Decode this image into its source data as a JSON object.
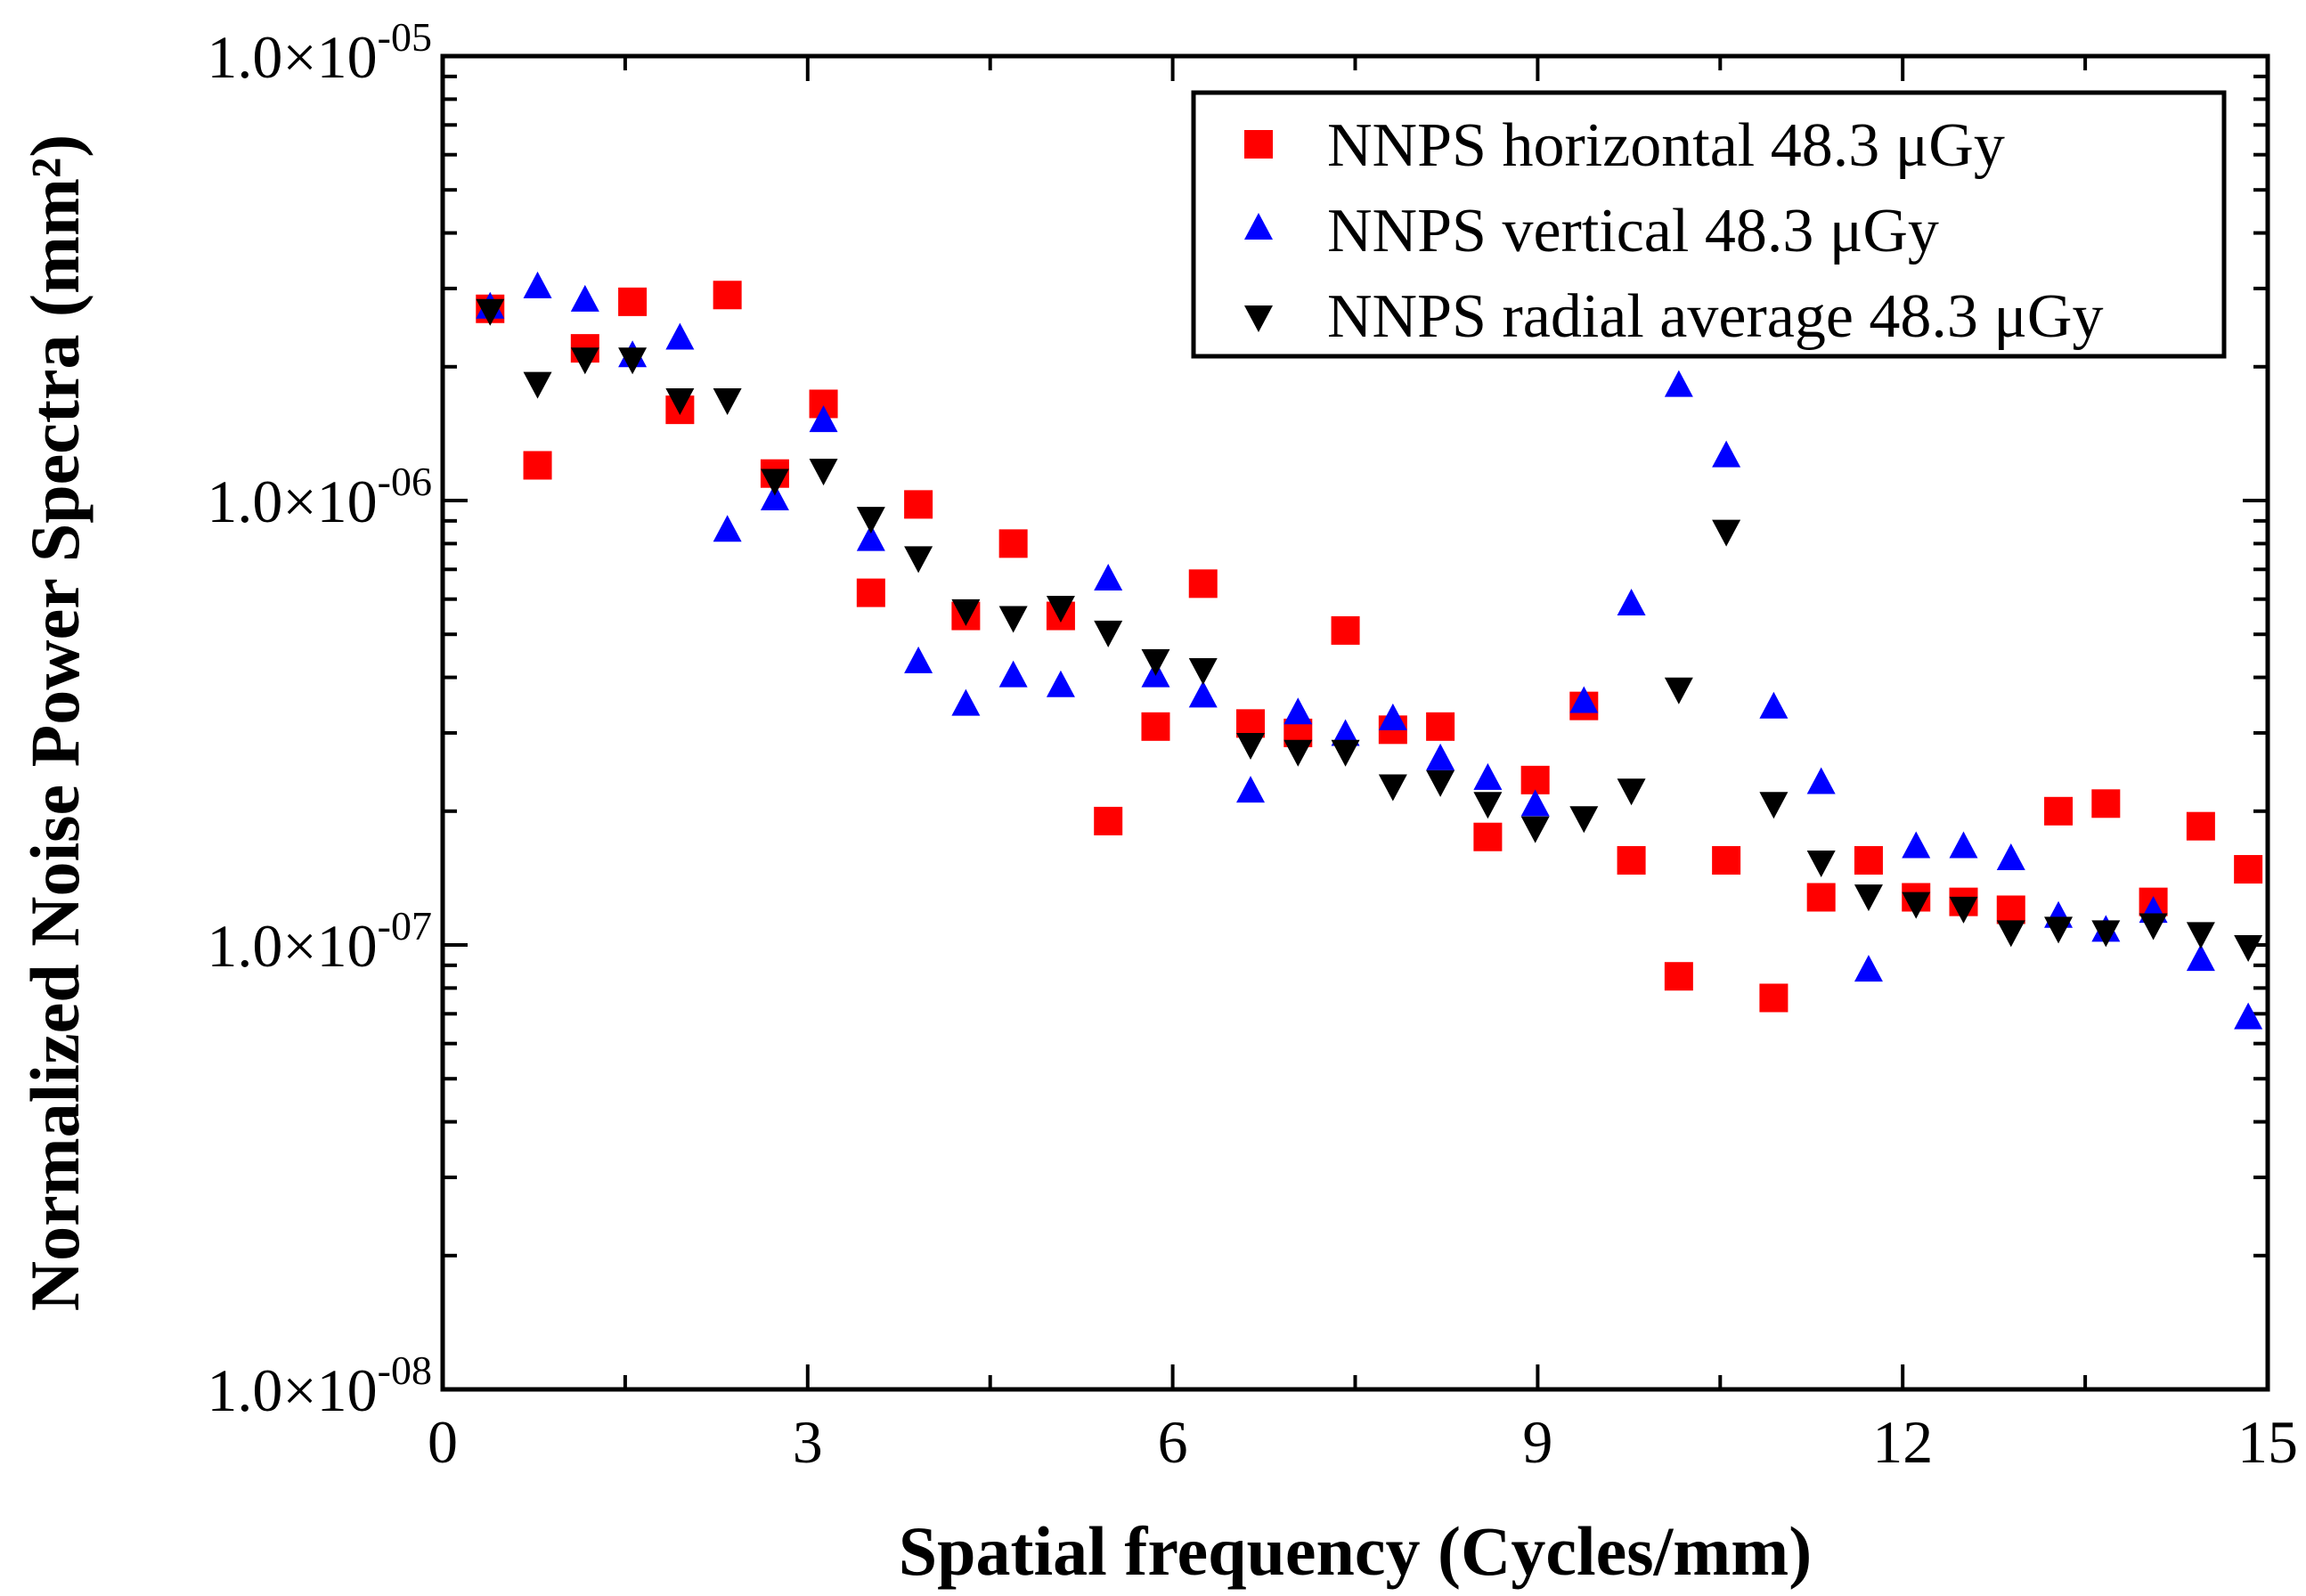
{
  "chart_data": {
    "type": "scatter",
    "title": "",
    "xlabel": "Spatial frequency (Cycles/mm)",
    "ylabel": "Normalized Noise Power Spectra (mm²)",
    "xlim": [
      0,
      15
    ],
    "ylim": [
      1e-08,
      1e-05
    ],
    "yscale": "log",
    "xticks": [
      0,
      3,
      6,
      9,
      12,
      15
    ],
    "xtick_labels": [
      "0",
      "3",
      "6",
      "9",
      "12",
      "15"
    ],
    "yticks": [
      1e-05,
      1e-06,
      1e-07,
      1e-08
    ],
    "ytick_labels": [
      {
        "mantissa": "1.0×10",
        "exponent": "-05"
      },
      {
        "mantissa": "1.0×10",
        "exponent": "-06"
      },
      {
        "mantissa": "1.0×10",
        "exponent": "-07"
      },
      {
        "mantissa": "1.0×10",
        "exponent": "-08"
      }
    ],
    "legend_position": "top-right",
    "series": [
      {
        "name": "NNPS horizontal 48.3 μGy",
        "marker": "square",
        "color": "#ff0000",
        "x": [
          0.39,
          0.78,
          1.17,
          1.56,
          1.95,
          2.34,
          2.73,
          3.13,
          3.52,
          3.91,
          4.3,
          4.69,
          5.08,
          5.47,
          5.86,
          6.25,
          6.64,
          7.03,
          7.42,
          7.81,
          8.2,
          8.59,
          8.98,
          9.38,
          9.77,
          10.16,
          10.55,
          10.94,
          11.33,
          11.72,
          12.11,
          12.5,
          12.89,
          13.28,
          13.67,
          14.06,
          14.45,
          14.84
        ],
        "y": [
          2.7e-06,
          1.2e-06,
          2.2e-06,
          2.8e-06,
          1.6e-06,
          2.9e-06,
          1.15e-06,
          1.65e-06,
          6.2e-07,
          9.8e-07,
          5.5e-07,
          8e-07,
          5.5e-07,
          1.9e-07,
          3.1e-07,
          6.5e-07,
          3.15e-07,
          3e-07,
          5.1e-07,
          3.05e-07,
          3.1e-07,
          1.75e-07,
          2.35e-07,
          3.45e-07,
          1.55e-07,
          8.5e-08,
          1.55e-07,
          7.6e-08,
          1.28e-07,
          1.55e-07,
          1.28e-07,
          1.25e-07,
          1.2e-07,
          2e-07,
          2.08e-07,
          1.25e-07,
          1.85e-07,
          1.48e-07
        ]
      },
      {
        "name": "NNPS vertical 48.3 μGy",
        "marker": "triangle-up",
        "color": "#0000ff",
        "x": [
          0.39,
          0.78,
          1.17,
          1.56,
          1.95,
          2.34,
          2.73,
          3.13,
          3.52,
          3.91,
          4.3,
          4.69,
          5.08,
          5.47,
          5.86,
          6.25,
          6.64,
          7.03,
          7.42,
          7.81,
          8.2,
          8.59,
          8.98,
          9.38,
          9.77,
          10.16,
          10.55,
          10.94,
          11.33,
          11.72,
          12.11,
          12.5,
          12.89,
          13.28,
          13.67,
          14.06,
          14.45,
          14.84
        ],
        "y": [
          2.7e-06,
          3e-06,
          2.8e-06,
          2.1e-06,
          2.3e-06,
          8.5e-07,
          1e-06,
          1.5e-06,
          8.1e-07,
          4.3e-07,
          3.45e-07,
          4e-07,
          3.8e-07,
          6.6e-07,
          4e-07,
          3.6e-07,
          2.2e-07,
          3.3e-07,
          2.95e-07,
          3.2e-07,
          2.6e-07,
          2.35e-07,
          2.05e-07,
          3.5e-07,
          5.8e-07,
          1.8e-06,
          1.25e-06,
          3.4e-07,
          2.3e-07,
          8.7e-08,
          1.65e-07,
          1.65e-07,
          1.55e-07,
          1.15e-07,
          1.07e-07,
          1.18e-07,
          9.2e-08,
          6.8e-08
        ]
      },
      {
        "name": "NNPS radial average 48.3 μGy",
        "marker": "triangle-down",
        "color": "#000000",
        "x": [
          0.39,
          0.78,
          1.17,
          1.56,
          1.95,
          2.34,
          2.73,
          3.13,
          3.52,
          3.91,
          4.3,
          4.69,
          5.08,
          5.47,
          5.86,
          6.25,
          6.64,
          7.03,
          7.42,
          7.81,
          8.2,
          8.59,
          8.98,
          9.38,
          9.77,
          10.16,
          10.55,
          10.94,
          11.33,
          11.72,
          12.11,
          12.5,
          12.89,
          13.28,
          13.67,
          14.06,
          14.45,
          14.84
        ],
        "y": [
          2.7e-06,
          1.85e-06,
          2.1e-06,
          2.1e-06,
          1.7e-06,
          1.7e-06,
          1.12e-06,
          1.18e-06,
          9.2e-07,
          7.5e-07,
          5.7e-07,
          5.5e-07,
          5.8e-07,
          5.1e-07,
          4.4e-07,
          4.2e-07,
          2.85e-07,
          2.75e-07,
          2.75e-07,
          2.3e-07,
          2.35e-07,
          2.1e-07,
          1.85e-07,
          1.95e-07,
          2.25e-07,
          3.8e-07,
          8.6e-07,
          2.1e-07,
          1.55e-07,
          1.3e-07,
          1.25e-07,
          1.22e-07,
          1.08e-07,
          1.1e-07,
          1.08e-07,
          1.12e-07,
          1.07e-07,
          1e-07
        ]
      }
    ]
  }
}
